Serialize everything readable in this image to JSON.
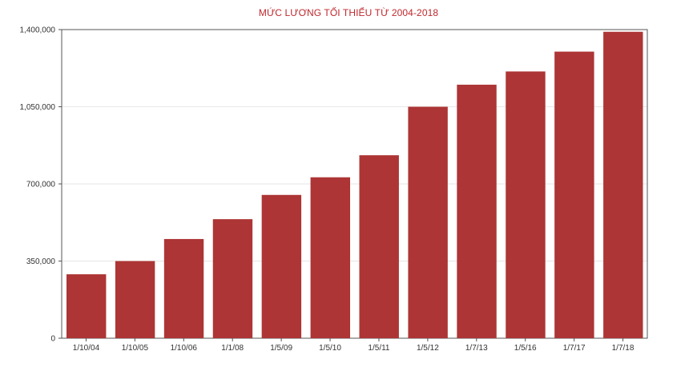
{
  "chart_data": {
    "type": "bar",
    "title": "MỨC LƯƠNG TỐI THIỂU TỪ 2004-2018",
    "xlabel": "",
    "ylabel": "",
    "categories": [
      "1/10/04",
      "1/10/05",
      "1/10/06",
      "1/1/08",
      "1/5/09",
      "1/5/10",
      "1/5/11",
      "1/5/12",
      "1/7/13",
      "1/5/16",
      "1/7/17",
      "1/7/18"
    ],
    "values": [
      290000,
      350000,
      450000,
      540000,
      650000,
      730000,
      830000,
      1050000,
      1150000,
      1210000,
      1300000,
      1390000
    ],
    "ylim": [
      0,
      1400000
    ],
    "yticks": [
      0,
      350000,
      700000,
      1050000,
      1400000
    ],
    "ytick_labels": [
      "0",
      "350,000",
      "700,000",
      "1,050,000",
      "1,400,000"
    ],
    "grid": true,
    "legend": "none",
    "colors": {
      "bar": "#ad3535",
      "title": "#c0282d",
      "grid": "#e6e6e6",
      "axis": "#555555"
    }
  }
}
